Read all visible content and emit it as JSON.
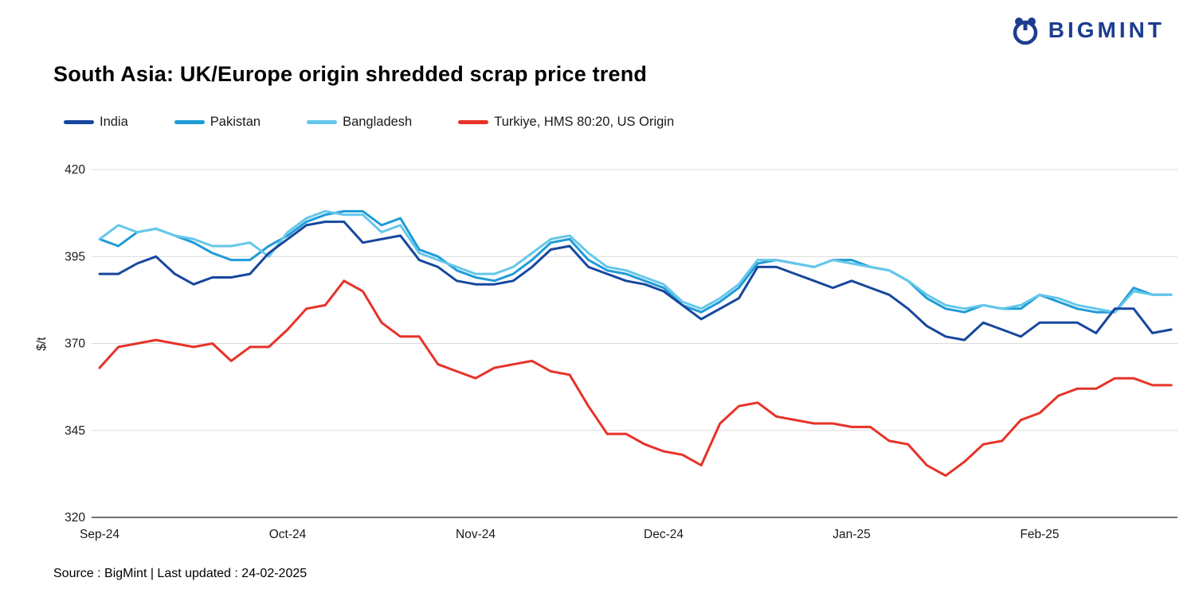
{
  "header": {
    "logo_text": "BIGMINT",
    "brand_color": "#1d3d8f"
  },
  "title": "South Asia: UK/Europe origin shredded scrap price trend",
  "source": "Source : BigMint | Last updated : 24-02-2025",
  "chart_data": {
    "type": "line",
    "title": "South Asia: UK/Europe origin shredded scrap price trend",
    "xlabel": "",
    "ylabel": "$/t",
    "ylim": [
      320,
      420
    ],
    "yticks": [
      420,
      395,
      370,
      345,
      320
    ],
    "grid": "horizontal",
    "legend_position": "top-left",
    "x_axis": {
      "tick_labels": [
        "Sep-24",
        "Oct-24",
        "Nov-24",
        "Dec-24",
        "Jan-25",
        "Feb-25"
      ],
      "tick_positions": [
        0,
        1,
        2,
        3,
        4,
        5
      ],
      "unit": "months since Sep-24"
    },
    "x_start": 0,
    "x_step": 0.1,
    "series": [
      {
        "name": "India",
        "color": "#17479e",
        "values": [
          390,
          390,
          393,
          395,
          390,
          387,
          389,
          389,
          390,
          396,
          400,
          404,
          405,
          405,
          399,
          400,
          401,
          394,
          392,
          388,
          387,
          387,
          388,
          392,
          397,
          398,
          392,
          390,
          388,
          387,
          385,
          381,
          377,
          380,
          383,
          392,
          392,
          390,
          388,
          386,
          388,
          386,
          384,
          380,
          375,
          372,
          371,
          376,
          374,
          372,
          376,
          376,
          376,
          373,
          380,
          380,
          373,
          374
        ]
      },
      {
        "name": "Pakistan",
        "color": "#1f9bd7",
        "values": [
          400,
          398,
          402,
          403,
          401,
          399,
          396,
          394,
          394,
          398,
          401,
          405,
          407,
          408,
          408,
          404,
          406,
          397,
          395,
          391,
          389,
          388,
          390,
          394,
          399,
          400,
          394,
          391,
          390,
          388,
          386,
          381,
          379,
          382,
          386,
          393,
          394,
          393,
          392,
          394,
          394,
          392,
          391,
          388,
          383,
          380,
          379,
          381,
          380,
          380,
          384,
          382,
          380,
          379,
          379,
          386,
          384,
          384
        ]
      },
      {
        "name": "Bangladesh",
        "color": "#64c7ea",
        "values": [
          400,
          404,
          402,
          403,
          401,
          400,
          398,
          398,
          399,
          395,
          402,
          406,
          408,
          407,
          407,
          402,
          404,
          396,
          394,
          392,
          390,
          390,
          392,
          396,
          400,
          401,
          396,
          392,
          391,
          389,
          387,
          382,
          380,
          383,
          387,
          394,
          394,
          393,
          392,
          394,
          393,
          392,
          391,
          388,
          384,
          381,
          380,
          381,
          380,
          381,
          384,
          383,
          381,
          380,
          379,
          385,
          384,
          384
        ]
      },
      {
        "name": "Turkiye, HMS 80:20, US Origin",
        "color": "#e63329",
        "values": [
          363,
          369,
          370,
          371,
          370,
          369,
          370,
          365,
          369,
          369,
          374,
          380,
          381,
          388,
          385,
          376,
          372,
          372,
          364,
          362,
          360,
          363,
          364,
          365,
          362,
          361,
          352,
          344,
          344,
          341,
          339,
          338,
          335,
          347,
          352,
          353,
          349,
          348,
          347,
          347,
          346,
          346,
          342,
          341,
          335,
          332,
          336,
          341,
          342,
          348,
          350,
          355,
          357,
          357,
          360,
          360,
          358,
          358
        ]
      }
    ]
  }
}
